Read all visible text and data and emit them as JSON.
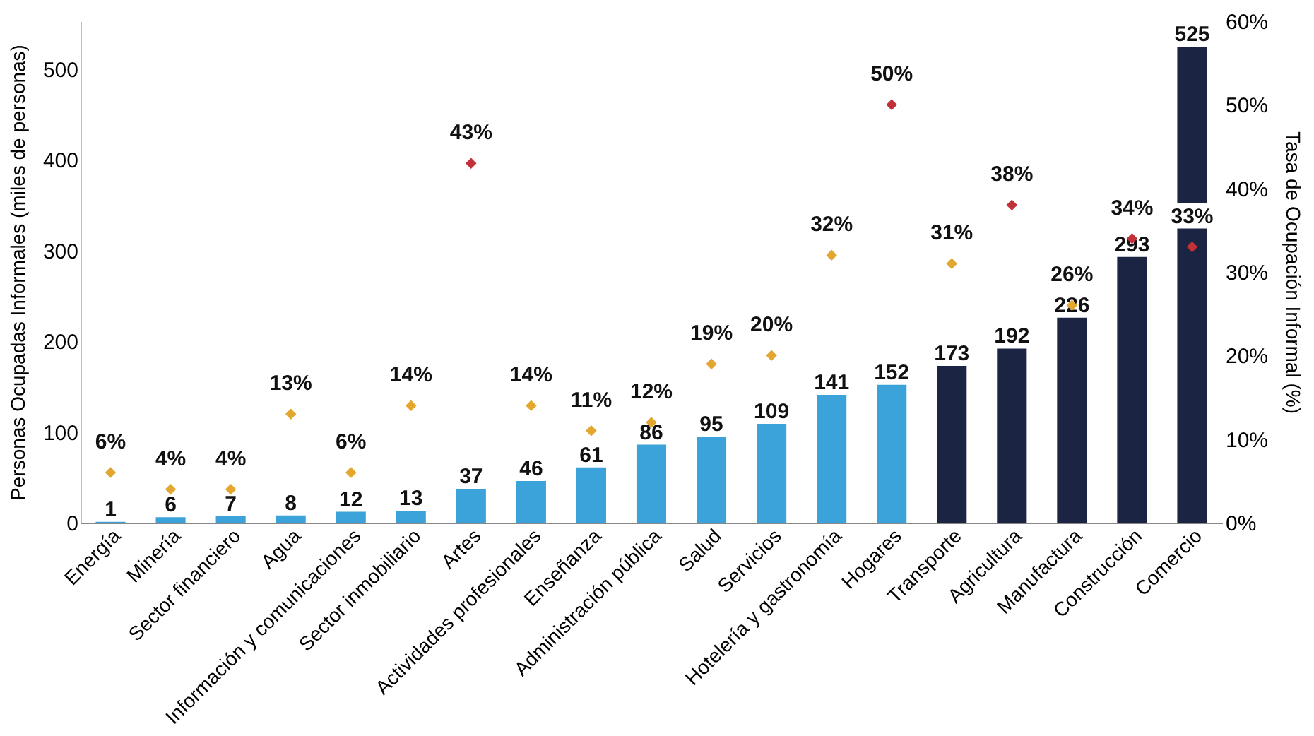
{
  "chart_data": {
    "type": "bar",
    "ylabel": "Personas Ocupadas Informales (miles de personas)",
    "y2label": "Tasa de Ocupación Informal (%)",
    "categories": [
      "Energía",
      "Minería",
      "Sector financiero",
      "Agua",
      "Información y comunicaciones",
      "Sector inmobiliario",
      "Artes",
      "Actividades profesionales",
      "Enseñanza",
      "Administración pública",
      "Salud",
      "Servicios",
      "Hotelería y gastronomía",
      "Hogares",
      "Transporte",
      "Agricultura",
      "Manufactura",
      "Construcción",
      "Comercio"
    ],
    "series": [
      {
        "values": [
          1,
          6,
          7,
          8,
          12,
          13,
          37,
          46,
          61,
          86,
          95,
          109,
          141,
          152,
          173,
          192,
          226,
          293,
          525
        ],
        "colors": [
          "#3ba3d9",
          "#3ba3d9",
          "#3ba3d9",
          "#3ba3d9",
          "#3ba3d9",
          "#3ba3d9",
          "#3ba3d9",
          "#3ba3d9",
          "#3ba3d9",
          "#3ba3d9",
          "#3ba3d9",
          "#3ba3d9",
          "#3ba3d9",
          "#3ba3d9",
          "#1c2444",
          "#1c2444",
          "#1c2444",
          "#1c2444",
          "#1c2444"
        ],
        "value_labels": [
          "1",
          "6",
          "7",
          "8",
          "12",
          "13",
          "37",
          "46",
          "61",
          "86",
          "95",
          "109",
          "141",
          "152",
          "173",
          "192",
          "226",
          "293",
          "525"
        ]
      },
      {
        "type": "scatter",
        "axis": "y2",
        "marker": "diamond",
        "values": [
          6,
          4,
          4,
          13,
          6,
          14,
          43,
          14,
          11,
          12,
          19,
          20,
          32,
          50,
          31,
          38,
          26,
          34,
          33
        ],
        "colors": [
          "#e3a72f",
          "#e3a72f",
          "#e3a72f",
          "#e3a72f",
          "#e3a72f",
          "#e3a72f",
          "#c1313a",
          "#e3a72f",
          "#e3a72f",
          "#e3a72f",
          "#e3a72f",
          "#e3a72f",
          "#e3a72f",
          "#c1313a",
          "#e3a72f",
          "#c1313a",
          "#e3a72f",
          "#c1313a",
          "#c1313a"
        ],
        "value_labels": [
          "6%",
          "4%",
          "4%",
          "13%",
          "6%",
          "14%",
          "43%",
          "14%",
          "11%",
          "12%",
          "19%",
          "20%",
          "32%",
          "50%",
          "31%",
          "38%",
          "26%",
          "34%",
          "33%"
        ]
      }
    ],
    "ylim": [
      0,
      553
    ],
    "yticks": [
      0,
      100,
      200,
      300,
      400,
      500
    ],
    "y2lim": [
      0,
      60
    ],
    "y2ticks": [
      {
        "value": 0,
        "label": "0%"
      },
      {
        "value": 10,
        "label": "10%"
      },
      {
        "value": 20,
        "label": "20%"
      },
      {
        "value": 30,
        "label": "30%"
      },
      {
        "value": 40,
        "label": "40%"
      },
      {
        "value": 50,
        "label": "50%"
      },
      {
        "value": 60,
        "label": "60%"
      }
    ],
    "grid": false
  }
}
